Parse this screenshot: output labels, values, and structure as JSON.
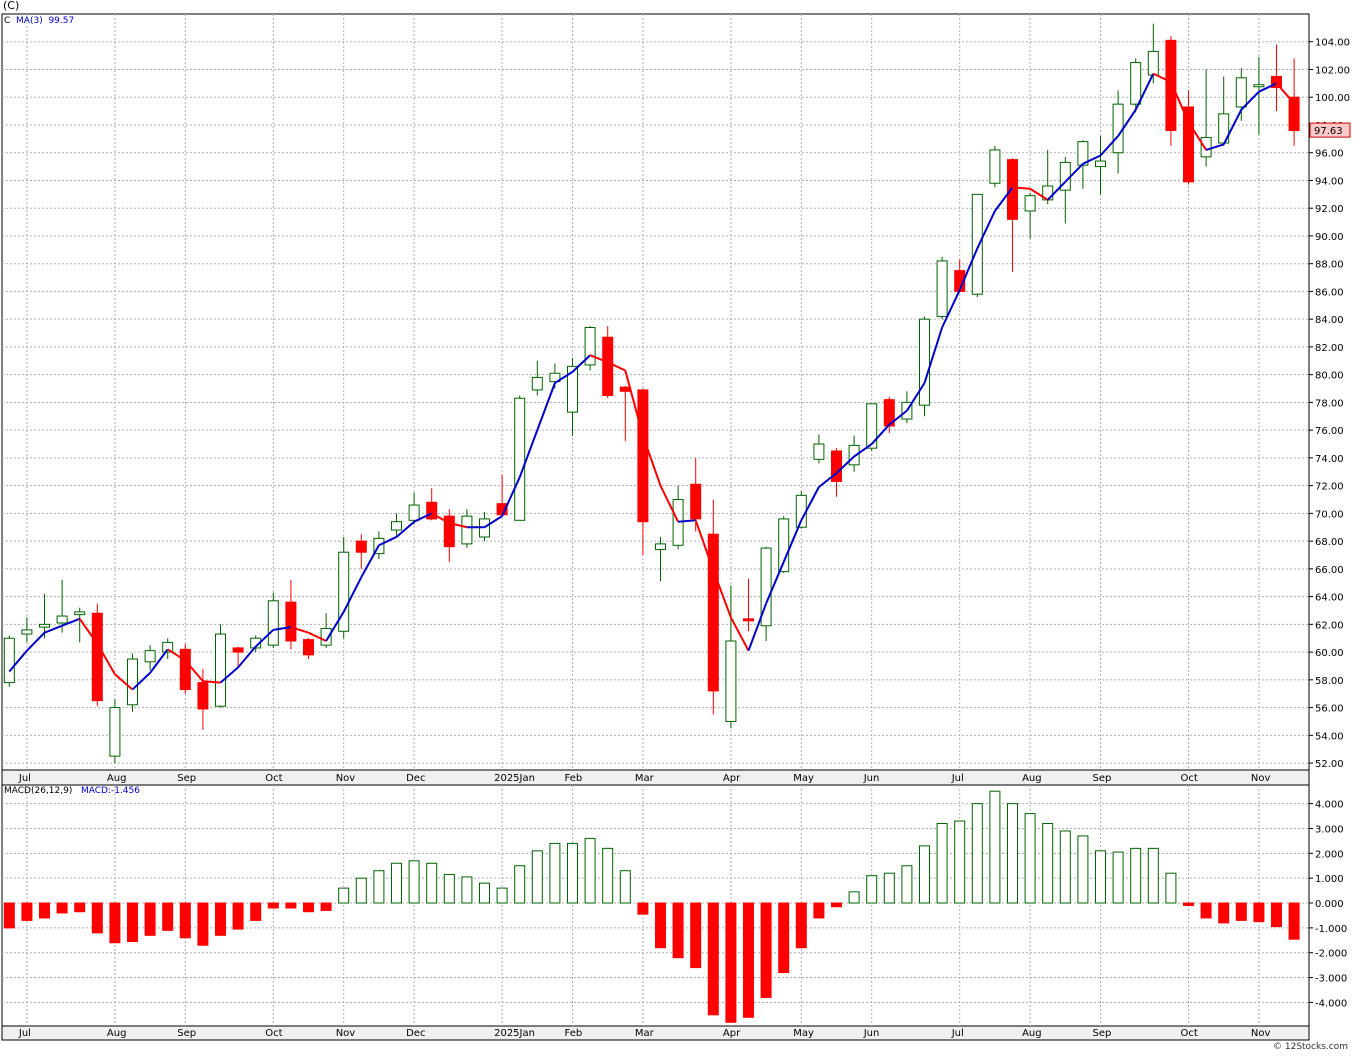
{
  "symbol": "(C)",
  "watermark": "© 12Stocks.com",
  "price_panel": {
    "legend_symbol": "C",
    "legend_ma_label": "MA(3)",
    "legend_ma_value": "99.57",
    "last_price_label": "97.63",
    "y_ticks": [
      "52.00",
      "54.00",
      "56.00",
      "58.00",
      "60.00",
      "62.00",
      "64.00",
      "66.00",
      "68.00",
      "70.00",
      "72.00",
      "74.00",
      "76.00",
      "78.00",
      "80.00",
      "82.00",
      "84.00",
      "86.00",
      "88.00",
      "90.00",
      "92.00",
      "94.00",
      "96.00",
      "98.00",
      "100.00",
      "102.00",
      "104.00"
    ]
  },
  "macd_panel": {
    "legend_name": "MACD(26,12,9)",
    "legend_value": "MACD:-1.456",
    "y_ticks": [
      "-4.000",
      "-3.000",
      "-2.000",
      "-1.000",
      "0.000",
      "1.000",
      "2.000",
      "3.000",
      "4.000"
    ]
  },
  "x_labels": [
    "Jul",
    "Aug",
    "Sep",
    "Oct",
    "Nov",
    "Dec",
    "2025Jan",
    "Feb",
    "Mar",
    "Apr",
    "May",
    "Jun",
    "Jul",
    "Aug",
    "Sep",
    "Oct",
    "Nov"
  ],
  "colors": {
    "up": "#006400",
    "down": "#ff0000",
    "ma_up": "#0000cc",
    "ma_down": "#ff0000",
    "grid": "#b0b0b0",
    "price_tag_bg": "#ffc8c8"
  },
  "chart_data": [
    {
      "type": "candlestick",
      "interval": "weekly",
      "x_labels": [
        "Jul",
        "Aug",
        "Sep",
        "Oct",
        "Nov",
        "Dec",
        "2025Jan",
        "Feb",
        "Mar",
        "Apr",
        "May",
        "Jun",
        "Jul",
        "Aug",
        "Sep",
        "Oct",
        "Nov"
      ],
      "ylim": [
        51.5,
        106
      ],
      "overlay": {
        "name": "MA(3)",
        "last": 99.57
      },
      "last_close": 97.63,
      "candles": [
        [
          57.8,
          61.0,
          57.5,
          61.2
        ],
        [
          61.3,
          61.6,
          60.7,
          62.5
        ],
        [
          61.8,
          62.0,
          61.0,
          64.2
        ],
        [
          62.1,
          62.6,
          61.4,
          65.2
        ],
        [
          62.7,
          62.9,
          60.7,
          63.2
        ],
        [
          62.8,
          56.5,
          56.1,
          63.5
        ],
        [
          52.5,
          56.0,
          52.0,
          56.6
        ],
        [
          56.2,
          59.5,
          55.7,
          59.9
        ],
        [
          59.3,
          60.1,
          58.7,
          60.5
        ],
        [
          60.0,
          60.7,
          59.5,
          61.0
        ],
        [
          60.2,
          57.3,
          57.0,
          60.6
        ],
        [
          57.8,
          55.9,
          54.4,
          58.8
        ],
        [
          56.1,
          61.3,
          56.0,
          62.0
        ],
        [
          60.3,
          60.0,
          58.9,
          60.4
        ],
        [
          60.3,
          61.0,
          60.0,
          61.2
        ],
        [
          60.5,
          63.7,
          60.3,
          64.3
        ],
        [
          63.6,
          60.8,
          60.2,
          65.2
        ],
        [
          60.9,
          59.8,
          59.5,
          61.0
        ],
        [
          60.5,
          61.7,
          60.3,
          62.8
        ],
        [
          61.5,
          67.2,
          61.0,
          68.3
        ],
        [
          68.0,
          67.2,
          66.0,
          68.5
        ],
        [
          67.1,
          68.2,
          66.7,
          68.7
        ],
        [
          68.8,
          69.4,
          68.4,
          70.0
        ],
        [
          69.5,
          70.6,
          69.2,
          71.5
        ],
        [
          70.8,
          69.6,
          69.5,
          71.8
        ],
        [
          69.8,
          67.6,
          66.5,
          70.3
        ],
        [
          67.8,
          69.8,
          67.5,
          70.3
        ],
        [
          68.3,
          69.6,
          68.0,
          70.1
        ],
        [
          70.7,
          69.9,
          69.8,
          72.8
        ],
        [
          69.5,
          78.3,
          69.5,
          78.5
        ],
        [
          78.9,
          79.8,
          78.5,
          81.0
        ],
        [
          79.5,
          80.1,
          79.0,
          80.8
        ],
        [
          77.3,
          80.6,
          75.6,
          81.2
        ],
        [
          80.7,
          83.4,
          80.3,
          83.5
        ],
        [
          82.7,
          78.5,
          78.3,
          83.5
        ],
        [
          79.1,
          78.8,
          75.2,
          79.2
        ],
        [
          78.9,
          69.4,
          67.0,
          79.0
        ],
        [
          67.4,
          67.8,
          65.1,
          68.3
        ],
        [
          67.7,
          71.0,
          67.4,
          72.0
        ],
        [
          72.1,
          69.6,
          68.7,
          74.0
        ],
        [
          68.5,
          57.2,
          55.5,
          71.0
        ],
        [
          55.0,
          60.8,
          54.5,
          64.8
        ],
        [
          62.4,
          62.3,
          61.5,
          65.3
        ],
        [
          61.9,
          67.5,
          60.8,
          67.6
        ],
        [
          65.8,
          69.6,
          65.7,
          69.8
        ],
        [
          69.0,
          71.3,
          68.9,
          71.6
        ],
        [
          73.9,
          75.0,
          73.6,
          75.7
        ],
        [
          74.5,
          72.3,
          71.2,
          74.7
        ],
        [
          73.5,
          74.9,
          73.0,
          75.6
        ],
        [
          74.7,
          77.9,
          74.5,
          77.9
        ],
        [
          78.2,
          76.3,
          75.8,
          78.4
        ],
        [
          76.8,
          78.0,
          76.5,
          78.8
        ],
        [
          77.8,
          84.0,
          77.0,
          84.2
        ],
        [
          84.2,
          88.2,
          84.0,
          88.5
        ],
        [
          87.5,
          86.0,
          85.9,
          88.3
        ],
        [
          85.8,
          93.0,
          85.6,
          93.0
        ],
        [
          93.8,
          96.2,
          93.5,
          96.5
        ],
        [
          95.5,
          91.2,
          87.4,
          95.6
        ],
        [
          91.8,
          92.9,
          89.8,
          93.1
        ],
        [
          92.6,
          93.6,
          92.3,
          96.2
        ],
        [
          93.3,
          95.3,
          90.9,
          95.7
        ],
        [
          95.1,
          96.8,
          93.4,
          96.9
        ],
        [
          95.0,
          95.4,
          93.0,
          97.2
        ],
        [
          96.0,
          99.5,
          94.5,
          100.5
        ],
        [
          99.5,
          102.5,
          98.9,
          102.8
        ],
        [
          101.6,
          103.3,
          101.0,
          105.3
        ],
        [
          104.1,
          97.6,
          96.5,
          104.4
        ],
        [
          99.3,
          93.9,
          93.7,
          100.5
        ],
        [
          95.7,
          97.1,
          95.0,
          102.0
        ],
        [
          96.7,
          98.8,
          96.5,
          101.5
        ],
        [
          99.3,
          101.4,
          98.3,
          102.1
        ],
        [
          100.8,
          100.9,
          97.3,
          102.9
        ],
        [
          101.5,
          100.7,
          99.0,
          103.8
        ],
        [
          100.0,
          97.6,
          96.5,
          102.8
        ]
      ],
      "ma": [
        58.6,
        60.1,
        61.4,
        61.9,
        62.4,
        60.6,
        58.4,
        57.3,
        58.5,
        60.2,
        59.4,
        57.9,
        57.8,
        58.9,
        60.4,
        61.6,
        61.8,
        61.4,
        60.8,
        62.9,
        65.4,
        67.7,
        68.3,
        69.4,
        70.0,
        69.3,
        69.0,
        69.0,
        69.8,
        72.6,
        76.0,
        79.4,
        80.2,
        81.4,
        80.9,
        80.3,
        75.6,
        72.0,
        69.4,
        69.5,
        65.9,
        62.5,
        60.1,
        63.5,
        66.5,
        69.5,
        71.9,
        72.9,
        74.1,
        75.0,
        76.4,
        77.4,
        79.4,
        83.4,
        86.1,
        89.1,
        91.8,
        93.5,
        93.4,
        92.6,
        93.9,
        95.2,
        95.8,
        97.2,
        99.1,
        101.7,
        101.1,
        98.2,
        96.2,
        96.6,
        99.1,
        100.4,
        101.0,
        99.57
      ]
    },
    {
      "type": "bar",
      "name": "MACD(26,12,9)",
      "last": -1.456,
      "ylim": [
        -4.95,
        4.75
      ],
      "values": [
        -1.0,
        -0.7,
        -0.6,
        -0.4,
        -0.35,
        -1.2,
        -1.6,
        -1.55,
        -1.3,
        -1.1,
        -1.4,
        -1.7,
        -1.3,
        -1.05,
        -0.7,
        -0.2,
        -0.2,
        -0.35,
        -0.3,
        0.6,
        1.0,
        1.3,
        1.6,
        1.7,
        1.6,
        1.15,
        1.05,
        0.8,
        0.6,
        1.5,
        2.1,
        2.4,
        2.4,
        2.6,
        2.2,
        1.3,
        -0.45,
        -1.8,
        -2.2,
        -2.6,
        -4.5,
        -4.8,
        -4.6,
        -3.8,
        -2.8,
        -1.8,
        -0.6,
        -0.15,
        0.45,
        1.1,
        1.2,
        1.5,
        2.3,
        3.2,
        3.3,
        4.0,
        4.5,
        4.0,
        3.6,
        3.2,
        2.9,
        2.7,
        2.1,
        2.05,
        2.2,
        2.2,
        1.2,
        -0.1,
        -0.6,
        -0.8,
        -0.7,
        -0.75,
        -0.95,
        -1.456
      ]
    }
  ]
}
